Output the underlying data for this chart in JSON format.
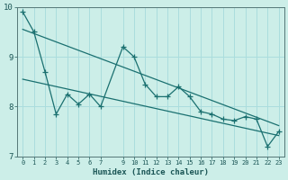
{
  "xlabel": "Humidex (Indice chaleur)",
  "background_color": "#cceee8",
  "grid_color": "#aadddd",
  "line_color": "#1a7070",
  "xlim": [
    -0.5,
    23.5
  ],
  "ylim": [
    7,
    10
  ],
  "yticks": [
    7,
    8,
    9,
    10
  ],
  "xtick_vals": [
    0,
    1,
    2,
    3,
    4,
    5,
    6,
    7,
    9,
    10,
    11,
    12,
    13,
    14,
    15,
    16,
    17,
    18,
    19,
    20,
    21,
    22,
    23
  ],
  "xtick_labels": [
    "0",
    "1",
    "2",
    "3",
    "4",
    "5",
    "6",
    "7",
    "9",
    "10",
    "11",
    "12",
    "13",
    "14",
    "15",
    "16",
    "17",
    "18",
    "19",
    "20",
    "21",
    "22",
    "23"
  ],
  "main_x": [
    0,
    1,
    2,
    3,
    4,
    5,
    6,
    7,
    9,
    10,
    11,
    12,
    13,
    14,
    15,
    16,
    17,
    18,
    19,
    20,
    21,
    22,
    23
  ],
  "main_y": [
    9.9,
    9.5,
    8.7,
    7.85,
    8.25,
    8.05,
    8.25,
    8.0,
    9.2,
    9.0,
    8.45,
    8.2,
    8.2,
    8.4,
    8.2,
    7.9,
    7.85,
    7.75,
    7.72,
    7.8,
    7.75,
    7.2,
    7.5
  ],
  "trend1_x": [
    0,
    23
  ],
  "trend1_y": [
    9.55,
    7.62
  ],
  "trend2_x": [
    0,
    23
  ],
  "trend2_y": [
    8.55,
    7.42
  ]
}
